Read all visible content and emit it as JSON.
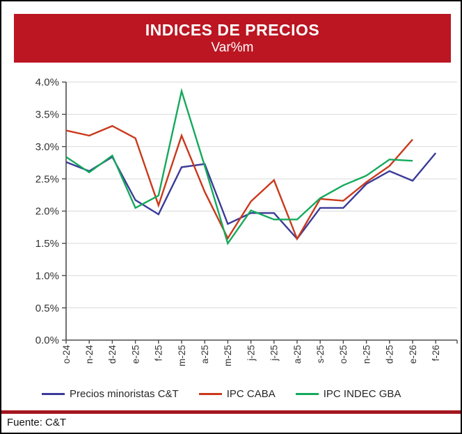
{
  "header": {
    "title": "INDICES DE PRECIOS",
    "subtitle": "Var%m"
  },
  "footer": {
    "source": "Fuente: C&T"
  },
  "colors": {
    "banner": "#bb1622",
    "source_rule": "#a4161f",
    "axis": "#4d4d4d",
    "grid": "#d9d9d9",
    "tick_label": "#333333"
  },
  "chart_data": {
    "type": "line",
    "title": "INDICES DE PRECIOS",
    "subtitle": "Var%m",
    "xlabel": "",
    "ylabel": "",
    "ylim": [
      0,
      4.0
    ],
    "ytick_step": 0.5,
    "ytick_labels": [
      "0.0%",
      "0.5%",
      "1.0%",
      "1.5%",
      "2.0%",
      "2.5%",
      "3.0%",
      "3.5%",
      "4.0%"
    ],
    "grid": true,
    "legend_position": "bottom",
    "categories": [
      "o-24",
      "n-24",
      "d-24",
      "e-25",
      "f-25",
      "m-25",
      "a-25",
      "m-25",
      "j-25",
      "j-25",
      "a-25",
      "s-25",
      "o-25",
      "n-25",
      "d-25",
      "e-26",
      "f-26"
    ],
    "series": [
      {
        "name": "Precios minoristas C&T",
        "color": "#3b3a98",
        "values": [
          2.76,
          2.62,
          2.84,
          2.17,
          1.95,
          2.68,
          2.73,
          1.8,
          1.97,
          1.97,
          1.57,
          2.05,
          2.05,
          2.42,
          2.62,
          2.47,
          2.9
        ]
      },
      {
        "name": "IPC CABA",
        "color": "#c9391b",
        "values": [
          3.25,
          3.17,
          3.32,
          3.13,
          2.09,
          3.17,
          2.3,
          1.58,
          2.15,
          2.48,
          1.57,
          2.19,
          2.16,
          2.45,
          2.7,
          3.11,
          null
        ]
      },
      {
        "name": "IPC INDEC GBA",
        "color": "#14a95c",
        "values": [
          2.84,
          2.6,
          2.86,
          2.05,
          2.24,
          3.86,
          2.7,
          1.5,
          2.01,
          1.87,
          1.87,
          2.2,
          2.4,
          2.55,
          2.8,
          2.78,
          null
        ]
      }
    ]
  }
}
